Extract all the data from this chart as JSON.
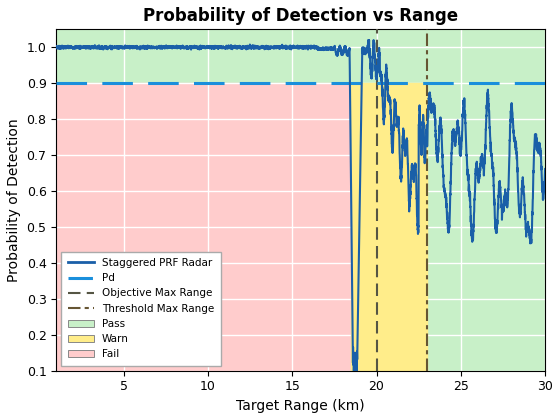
{
  "title": "Probability of Detection vs Range",
  "xlabel": "Target Range (km)",
  "ylabel": "Probability of Detection",
  "xlim": [
    1,
    30
  ],
  "ylim": [
    0.1,
    1.05
  ],
  "pd_threshold": 0.9,
  "objective_max_range": 20.0,
  "threshold_max_range": 23.0,
  "pd_drop_range": 18.5,
  "pass_color": "#c8f0c8",
  "warn_color": "#ffed8a",
  "fail_color": "#ffcccc",
  "line_color": "#1a5fa8",
  "pd_line_color": "#1a8fdc",
  "obj_vline_color": "#555544",
  "thr_vline_color": "#665533",
  "legend_loc": "lower left"
}
